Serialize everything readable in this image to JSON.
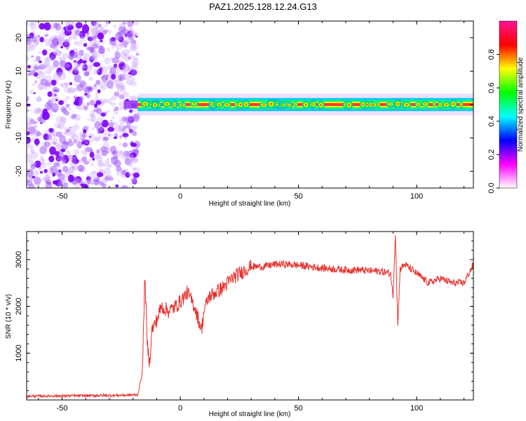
{
  "title": "PAZ1.2025.128.12.24.G13",
  "chart_data": [
    {
      "type": "heatmap",
      "xlabel": "Height of straight line (km)",
      "ylabel": "Frequency (Hz)",
      "xlim": [
        -65,
        124
      ],
      "ylim": [
        -25,
        25
      ],
      "xticks": [
        -50,
        0,
        50,
        100
      ],
      "yticks": [
        -20,
        -10,
        0,
        10,
        20
      ],
      "noise_region": {
        "x_from": -65,
        "x_to": -18,
        "y_from": -25,
        "y_to": 25
      },
      "signal_band": {
        "x_from": -18,
        "x_to": 124,
        "center_hz": 0,
        "half_width_hz": 1.5
      },
      "colorbar": {
        "label": "Normalized spectral amplitude",
        "range": [
          0.0,
          1.0
        ],
        "ticks": [
          0.0,
          0.2,
          0.4,
          0.6,
          0.8
        ],
        "colors": [
          "#ffffff",
          "#ff00ff",
          "#0000ff",
          "#00ffff",
          "#00ff00",
          "#ffff00",
          "#ff0000",
          "#ff1493"
        ]
      }
    },
    {
      "type": "line",
      "xlabel": "Height of straight line (km)",
      "ylabel": "SNR (10 * v/v)",
      "xlim": [
        -65,
        124
      ],
      "ylim": [
        0,
        3600
      ],
      "xticks": [
        -50,
        0,
        50,
        100
      ],
      "yticks": [
        1000,
        2000,
        3000
      ],
      "color": "#e8302c",
      "series": [
        {
          "name": "SNR",
          "x": [
            -65,
            -55,
            -45,
            -35,
            -25,
            -18,
            -16,
            -15,
            -14,
            -13,
            -12,
            -10,
            -8,
            -5,
            -2,
            0,
            3,
            6,
            9,
            10,
            12,
            15,
            18,
            22,
            25,
            28,
            30,
            35,
            40,
            45,
            50,
            55,
            60,
            65,
            70,
            75,
            80,
            85,
            89,
            90,
            91,
            92,
            93,
            95,
            100,
            105,
            110,
            115,
            120,
            124
          ],
          "y": [
            80,
            85,
            90,
            95,
            100,
            110,
            600,
            2700,
            1200,
            800,
            1500,
            1700,
            2000,
            1900,
            2000,
            2100,
            2300,
            2000,
            1500,
            1900,
            2200,
            2300,
            2400,
            2600,
            2700,
            2800,
            2850,
            2850,
            2900,
            2900,
            2880,
            2850,
            2820,
            2800,
            2780,
            2780,
            2760,
            2750,
            2700,
            2200,
            3600,
            1600,
            2800,
            2900,
            2700,
            2500,
            2600,
            2500,
            2500,
            2900
          ]
        }
      ]
    }
  ]
}
